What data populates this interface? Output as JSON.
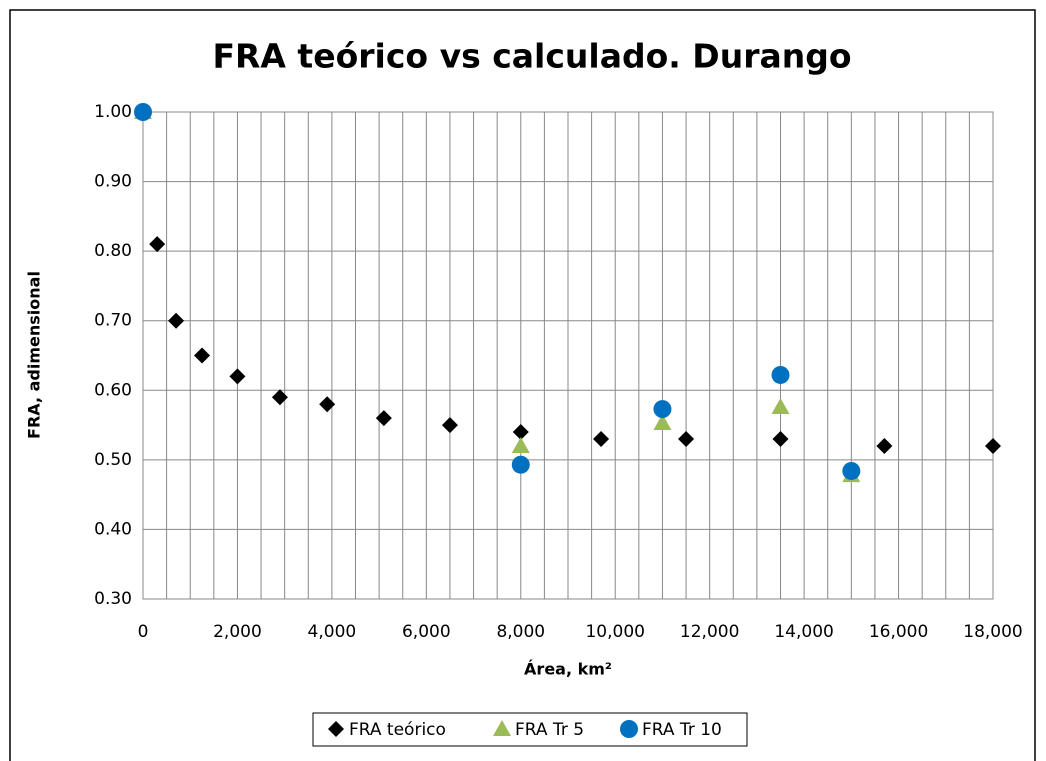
{
  "chart_data": {
    "type": "scatter",
    "title": "FRA teórico vs calculado. Durango",
    "x_label": "Área, km²",
    "y_label": "FRA, adimensional",
    "series": [
      {
        "name": "FRA teórico",
        "color": "#000000",
        "marker": "diamond",
        "x": [
          0,
          300,
          700,
          1250,
          2000,
          2900,
          3900,
          5100,
          6500,
          8000,
          9700,
          11500,
          13500,
          15700,
          18000
        ],
        "values": [
          1.0,
          0.81,
          0.7,
          0.65,
          0.62,
          0.59,
          0.58,
          0.56,
          0.55,
          0.54,
          0.53,
          0.53,
          0.53,
          0.52,
          0.52
        ]
      },
      {
        "name": "FRA Tr 5",
        "color": "#9bbb59",
        "marker": "triangle",
        "x": [
          0,
          8000,
          11000,
          13500,
          15000
        ],
        "values": [
          1.0,
          0.52,
          0.553,
          0.576,
          0.478
        ]
      },
      {
        "name": "FRA Tr 10",
        "color": "#0070c0",
        "marker": "circle",
        "x": [
          0,
          8000,
          11000,
          13500,
          15000
        ],
        "values": [
          1.0,
          0.493,
          0.573,
          0.622,
          0.484
        ]
      }
    ],
    "xlim": [
      0,
      18000
    ],
    "xticks": [
      0,
      {
        "value": 2000,
        "label": "2,000"
      },
      {
        "value": 4000,
        "label": "4,000"
      },
      {
        "value": 6000,
        "label": "6,000"
      },
      {
        "value": 8000,
        "label": "8,000"
      },
      {
        "value": 10000,
        "label": "10,000"
      },
      {
        "value": 12000,
        "label": "12,000"
      },
      {
        "value": 14000,
        "label": "14,000"
      },
      {
        "value": 16000,
        "label": "16,000"
      },
      {
        "value": 18000,
        "label": "18,000"
      }
    ],
    "ylim": [
      0.3,
      1.0
    ],
    "yticks": [
      {
        "value": 0.3,
        "label": "0.30"
      },
      {
        "value": 0.4,
        "label": "0.40"
      },
      {
        "value": 0.5,
        "label": "0.50"
      },
      {
        "value": 0.6,
        "label": "0.60"
      },
      {
        "value": 0.7,
        "label": "0.70"
      },
      {
        "value": 0.8,
        "label": "0.80"
      },
      {
        "value": 0.9,
        "label": "0.90"
      },
      {
        "value": 1.0,
        "label": "1.00"
      }
    ],
    "grid": true,
    "legend": "bottom"
  }
}
